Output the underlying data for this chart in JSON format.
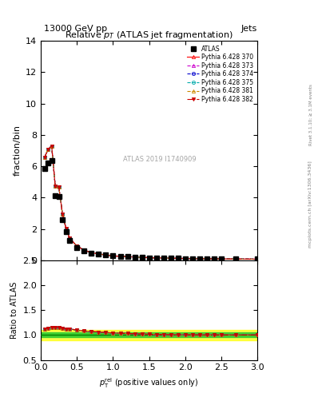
{
  "title_top": "13000 GeV pp",
  "title_right": "Jets",
  "plot_title": "Relative $p_T$ (ATLAS jet fragmentation)",
  "xlabel": "$p_{\\textrm{T}}^{\\textrm{rel}}$ (positive values only)",
  "ylabel_main": "fraction/bin",
  "ylabel_ratio": "Ratio to ATLAS",
  "right_label": "Rivet 3.1.10; ≥ 3.1M events",
  "arxiv_label": "[arXiv:1306.3436]",
  "mcplots_label": "mcplots.cern.ch",
  "watermark": "ATLAS 2019 I1740909",
  "atlas_label": "ATLAS",
  "legend_entries": [
    "ATLAS",
    "Pythia 6.428 370",
    "Pythia 6.428 373",
    "Pythia 6.428 374",
    "Pythia 6.428 375",
    "Pythia 6.428 381",
    "Pythia 6.428 382"
  ],
  "x_data": [
    0.05,
    0.1,
    0.15,
    0.2,
    0.25,
    0.3,
    0.35,
    0.4,
    0.5,
    0.6,
    0.7,
    0.8,
    0.9,
    1.0,
    1.1,
    1.2,
    1.3,
    1.4,
    1.5,
    1.6,
    1.7,
    1.8,
    1.9,
    2.0,
    2.1,
    2.2,
    2.3,
    2.4,
    2.5,
    2.7,
    3.0
  ],
  "atlas_y": [
    5.85,
    6.2,
    6.35,
    4.1,
    4.05,
    2.6,
    1.8,
    1.25,
    0.82,
    0.6,
    0.45,
    0.38,
    0.32,
    0.27,
    0.24,
    0.22,
    0.2,
    0.18,
    0.16,
    0.15,
    0.14,
    0.13,
    0.12,
    0.11,
    0.105,
    0.1,
    0.095,
    0.09,
    0.085,
    0.08,
    0.07
  ],
  "atlas_yerr": [
    0.1,
    0.1,
    0.1,
    0.1,
    0.1,
    0.1,
    0.05,
    0.05,
    0.03,
    0.02,
    0.02,
    0.02,
    0.01,
    0.01,
    0.01,
    0.01,
    0.01,
    0.01,
    0.01,
    0.01,
    0.01,
    0.01,
    0.01,
    0.01,
    0.01,
    0.01,
    0.01,
    0.01,
    0.01,
    0.01,
    0.01
  ],
  "pythia_colors": [
    "#ff0000",
    "#cc00cc",
    "#0000cc",
    "#00aaaa",
    "#cc8800",
    "#cc0000"
  ],
  "pythia_linestyles": [
    "-",
    "--",
    "--",
    "--",
    "--",
    "-."
  ],
  "pythia_markers": [
    "^",
    "^",
    "o",
    "o",
    "^",
    "v"
  ],
  "pythia_markerfacecolors": [
    "none",
    "none",
    "none",
    "none",
    "none",
    "#cc0000"
  ],
  "ratio_values": [
    1.12,
    1.14,
    1.15,
    1.15,
    1.15,
    1.13,
    1.12,
    1.12,
    1.1,
    1.08,
    1.07,
    1.06,
    1.05,
    1.04,
    1.035,
    1.03,
    1.025,
    1.02,
    1.015,
    1.01,
    1.008,
    1.006,
    1.004,
    1.003,
    1.002,
    1.001,
    1.001,
    1.0,
    1.0,
    1.0,
    1.0
  ],
  "xlim": [
    0.0,
    3.0
  ],
  "ylim_main": [
    0.0,
    14.0
  ],
  "ylim_ratio": [
    0.5,
    2.5
  ],
  "yticks_main": [
    0,
    2,
    4,
    6,
    8,
    10,
    12,
    14
  ],
  "yticks_ratio": [
    0.5,
    1.0,
    1.5,
    2.0,
    2.5
  ],
  "green_band_inner": 0.05,
  "green_band_outer": 0.1,
  "background_color": "#ffffff"
}
